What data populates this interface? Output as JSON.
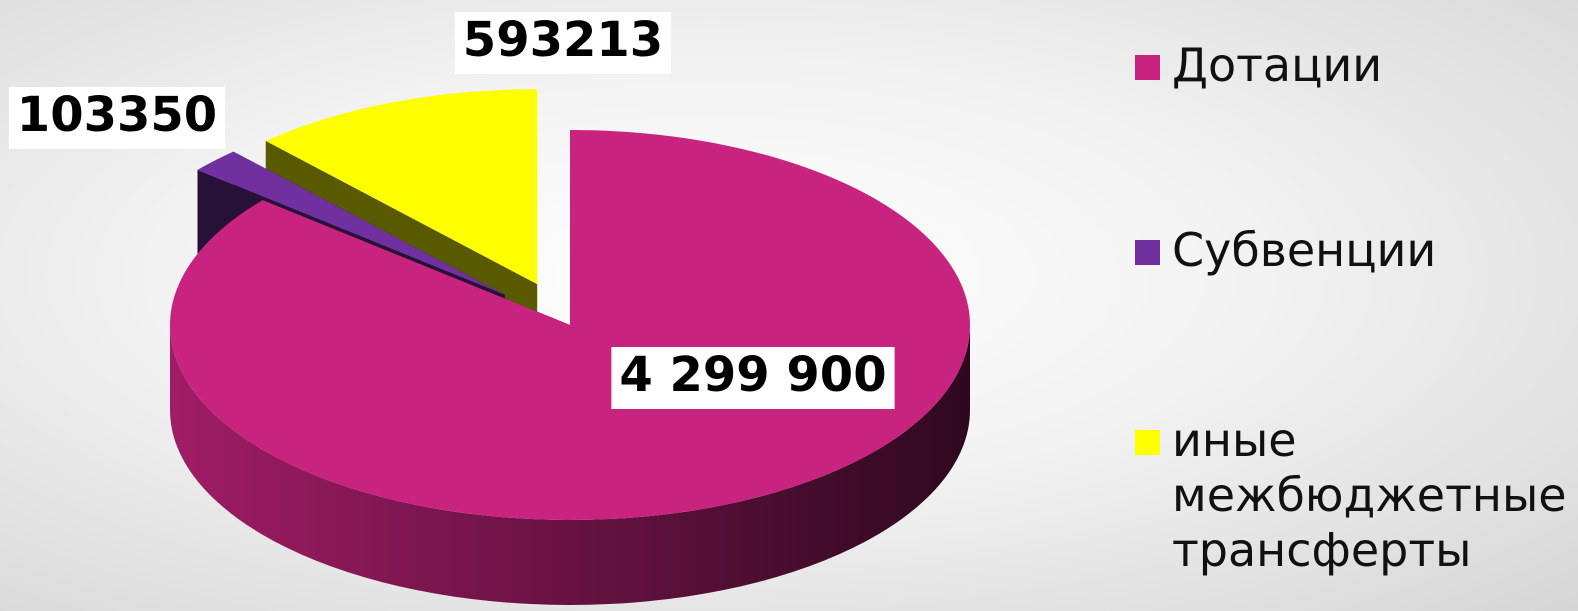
{
  "chart_data": {
    "type": "pie3d",
    "categories": [
      "Дотации",
      "Субвенции",
      "иные межбюджетные трансферты"
    ],
    "values": [
      4299900,
      103350,
      593213
    ],
    "value_labels": [
      "4 299 900",
      "103350",
      "593213"
    ],
    "colors": [
      "#C8247F",
      "#7030A0",
      "#FFFF00"
    ],
    "exploded": [
      false,
      true,
      true
    ],
    "legend": "right"
  }
}
